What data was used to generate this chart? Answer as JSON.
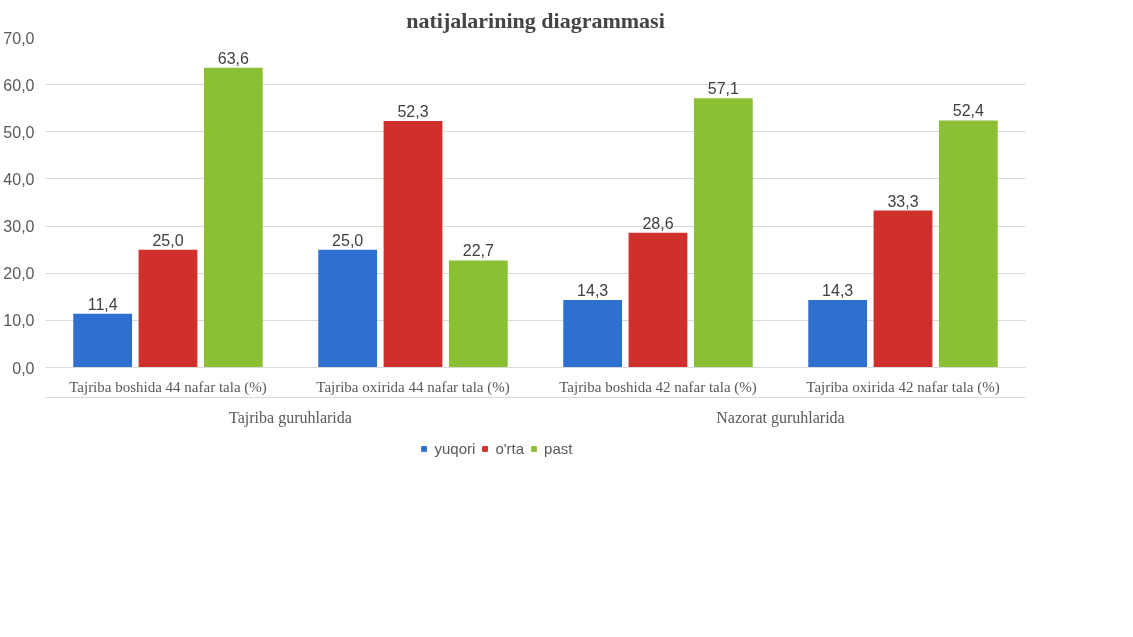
{
  "chart_data": {
    "type": "bar",
    "title": "natijalarining diagrammasi",
    "categories": [
      "Tajriba boshida 44 nafar tala    (%)",
      "Tajriba oxirida 44 nafar tala    (%)",
      "Tajriba boshida 42 nafar tala    (%)",
      "Tajriba oxirida 42 nafar tala    (%)"
    ],
    "annotations": [
      "Tajriba guruhlarida",
      "Nazorat guruhlarida"
    ],
    "series": [
      {
        "name": "yuqori",
        "color": "#2f6fd0",
        "values": [
          11.4,
          25.0,
          14.3,
          14.3
        ],
        "value_labels": [
          "11,4",
          "25,0",
          "14,3",
          "14,3"
        ]
      },
      {
        "name": "o'rta",
        "color": "#d0302c",
        "values": [
          25.0,
          52.3,
          28.6,
          33.3
        ],
        "value_labels": [
          "25,0",
          "52,3",
          "28,6",
          "33,3"
        ]
      },
      {
        "name": "past",
        "color": "#8cc034",
        "values": [
          63.6,
          22.7,
          57.1,
          52.4
        ],
        "value_labels": [
          "63,6",
          "22,7",
          "57,1",
          "52,4"
        ]
      }
    ],
    "ylim": [
      0,
      70
    ],
    "yticks": [
      {
        "value": 0,
        "label": "0,0"
      },
      {
        "value": 10,
        "label": "10,0"
      },
      {
        "value": 20,
        "label": "20,0"
      },
      {
        "value": 30,
        "label": "30,0"
      },
      {
        "value": 40,
        "label": "40,0"
      },
      {
        "value": 50,
        "label": "50,0"
      },
      {
        "value": 60,
        "label": "60,0"
      },
      {
        "value": 70,
        "label": "70,0"
      }
    ],
    "grid": "y",
    "legend": "bottom"
  }
}
